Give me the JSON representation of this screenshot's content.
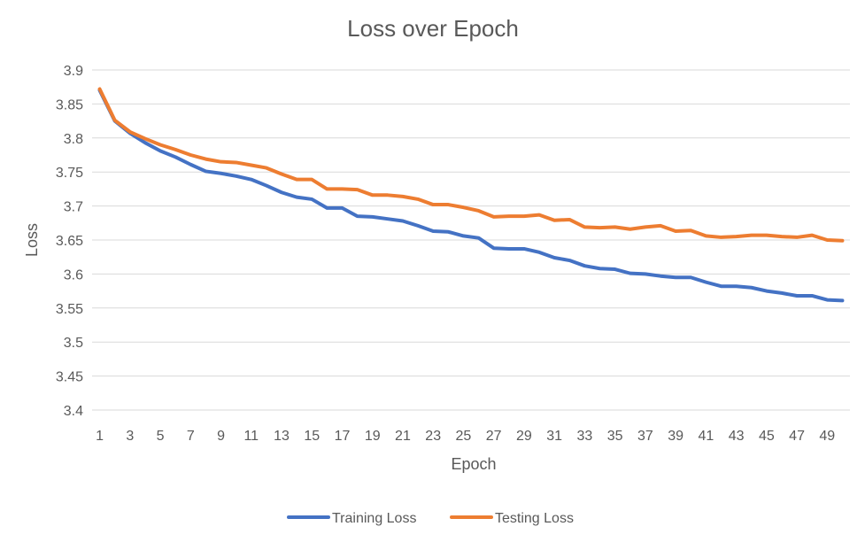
{
  "chart_data": {
    "type": "line",
    "title": "Loss over Epoch",
    "xlabel": "Epoch",
    "ylabel": "Loss",
    "ylim": [
      3.4,
      3.9
    ],
    "yticks": [
      "3.4",
      "3.45",
      "3.5",
      "3.55",
      "3.6",
      "3.65",
      "3.7",
      "3.75",
      "3.8",
      "3.85",
      "3.9"
    ],
    "xtick_labels": [
      "1",
      "3",
      "5",
      "7",
      "9",
      "11",
      "13",
      "15",
      "17",
      "19",
      "21",
      "23",
      "25",
      "27",
      "29",
      "31",
      "33",
      "35",
      "37",
      "39",
      "41",
      "43",
      "45",
      "47",
      "49"
    ],
    "x": [
      1,
      2,
      3,
      4,
      5,
      6,
      7,
      8,
      9,
      10,
      11,
      12,
      13,
      14,
      15,
      16,
      17,
      18,
      19,
      20,
      21,
      22,
      23,
      24,
      25,
      26,
      27,
      28,
      29,
      30,
      31,
      32,
      33,
      34,
      35,
      36,
      37,
      38,
      39,
      40,
      41,
      42,
      43,
      44,
      45,
      46,
      47,
      48,
      49,
      50
    ],
    "grid": true,
    "legend_position": "bottom",
    "series": [
      {
        "name": "Training Loss",
        "color": "#4472C4",
        "values": [
          3.87,
          3.825,
          3.807,
          3.793,
          3.781,
          3.772,
          3.761,
          3.751,
          3.748,
          3.744,
          3.739,
          3.73,
          3.72,
          3.713,
          3.71,
          3.697,
          3.697,
          3.685,
          3.684,
          3.681,
          3.678,
          3.671,
          3.663,
          3.662,
          3.656,
          3.653,
          3.638,
          3.637,
          3.637,
          3.632,
          3.624,
          3.62,
          3.612,
          3.608,
          3.607,
          3.601,
          3.6,
          3.597,
          3.595,
          3.595,
          3.588,
          3.582,
          3.582,
          3.58,
          3.575,
          3.572,
          3.568,
          3.568,
          3.562,
          3.561
        ]
      },
      {
        "name": "Testing Loss",
        "color": "#ED7D31",
        "values": [
          3.872,
          3.826,
          3.809,
          3.799,
          3.79,
          3.783,
          3.775,
          3.769,
          3.765,
          3.764,
          3.76,
          3.756,
          3.747,
          3.739,
          3.739,
          3.725,
          3.725,
          3.724,
          3.716,
          3.716,
          3.714,
          3.71,
          3.702,
          3.702,
          3.698,
          3.693,
          3.684,
          3.685,
          3.685,
          3.687,
          3.679,
          3.68,
          3.669,
          3.668,
          3.669,
          3.666,
          3.669,
          3.671,
          3.663,
          3.664,
          3.656,
          3.654,
          3.655,
          3.657,
          3.657,
          3.655,
          3.654,
          3.657,
          3.65,
          3.649
        ]
      }
    ]
  }
}
